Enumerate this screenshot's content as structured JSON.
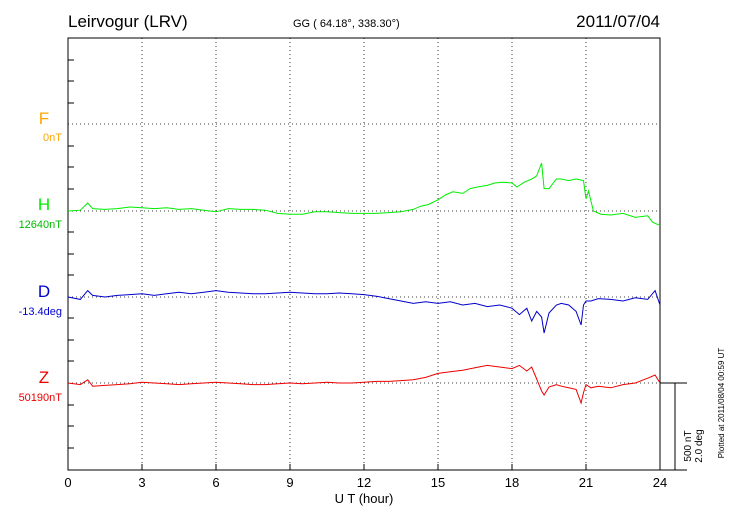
{
  "header": {
    "station": "Leirvogur (LRV)",
    "coords": "GG ( 64.18°, 338.30°)",
    "date": "2011/07/04"
  },
  "plotted_note": "Plotted at 2011/08/04 00:59 UT",
  "scale": {
    "nt": "500 nT",
    "deg": "2.0 deg"
  },
  "chart_data": {
    "type": "line",
    "title": "Leirvogur (LRV)",
    "xlabel": "U T (hour)",
    "ylabel": "",
    "xlim": [
      0,
      24
    ],
    "x_ticks": [
      "0",
      "3",
      "6",
      "9",
      "12",
      "15",
      "18",
      "21",
      "24"
    ],
    "grid": true,
    "series": [
      {
        "name": "F",
        "baseline_label": "0nT",
        "color": "#ffa500",
        "x": [],
        "values": []
      },
      {
        "name": "H",
        "baseline_label": "12640nT",
        "color": "#00ee00",
        "x": [
          0,
          0.5,
          0.8,
          1.0,
          1.5,
          2,
          2.5,
          3,
          3.5,
          4,
          4.5,
          5,
          5.5,
          6,
          6.5,
          7,
          7.5,
          8,
          8.5,
          9,
          9.5,
          10,
          10.5,
          11,
          11.5,
          12,
          12.5,
          13,
          13.5,
          14,
          14.3,
          14.6,
          15,
          15.3,
          15.6,
          16,
          16.3,
          16.6,
          17,
          17.3,
          17.6,
          18,
          18.2,
          18.5,
          18.8,
          19.0,
          19.2,
          19.3,
          19.5,
          19.8,
          20.0,
          20.3,
          20.6,
          20.9,
          21.0,
          21.1,
          21.3,
          21.6,
          22.0,
          22.5,
          23.0,
          23.5,
          23.7,
          24.0
        ],
        "values": [
          0,
          1,
          10,
          3,
          2,
          3,
          5,
          4,
          3,
          4,
          2,
          3,
          1,
          -1,
          3,
          2,
          2,
          1,
          -3,
          -4,
          -4,
          -1,
          -1,
          -2,
          -3,
          -3,
          -3,
          -2,
          -1,
          2,
          6,
          8,
          14,
          20,
          24,
          22,
          28,
          30,
          32,
          35,
          36,
          35,
          30,
          36,
          40,
          44,
          60,
          28,
          28,
          40,
          40,
          38,
          40,
          38,
          15,
          25,
          0,
          -4,
          -5,
          -3,
          -8,
          -6,
          -14,
          -18
        ]
      },
      {
        "name": "D",
        "baseline_label": "-13.4deg",
        "color": "#0000cc",
        "x": [
          0,
          0.5,
          0.8,
          1.0,
          1.5,
          2,
          2.5,
          3,
          3.5,
          4,
          4.5,
          5,
          5.5,
          6,
          6.5,
          7,
          7.5,
          8,
          8.5,
          9,
          9.5,
          10,
          10.5,
          11,
          11.5,
          12,
          12.5,
          13,
          13.5,
          14,
          14.5,
          15,
          15.5,
          16,
          16.5,
          17,
          17.5,
          18,
          18.3,
          18.6,
          18.8,
          19.0,
          19.2,
          19.3,
          19.5,
          19.8,
          20.0,
          20.3,
          20.6,
          20.8,
          20.9,
          21.0,
          21.2,
          21.5,
          22,
          22.5,
          23,
          23.5,
          23.8,
          24.0
        ],
        "values": [
          0,
          -3,
          8,
          2,
          0,
          2,
          3,
          4,
          2,
          4,
          6,
          4,
          6,
          8,
          6,
          5,
          4,
          4,
          5,
          6,
          5,
          4,
          4,
          5,
          4,
          3,
          1,
          -2,
          -5,
          -8,
          -6,
          -8,
          -6,
          -10,
          -8,
          -12,
          -10,
          -14,
          -22,
          -14,
          -30,
          -18,
          -25,
          -45,
          -20,
          -10,
          -8,
          -10,
          -18,
          -35,
          -10,
          -5,
          -5,
          -2,
          -3,
          -5,
          -1,
          -3,
          8,
          -10
        ]
      },
      {
        "name": "Z",
        "baseline_label": "50190nT",
        "color": "#ee0000",
        "x": [
          0,
          0.5,
          0.8,
          1.0,
          1.5,
          2,
          2.5,
          3,
          3.5,
          4,
          4.5,
          5,
          5.5,
          6,
          6.5,
          7,
          7.5,
          8,
          8.5,
          9,
          9.5,
          10,
          10.5,
          11,
          11.5,
          12,
          12.5,
          13,
          13.5,
          14,
          14.5,
          15,
          15.5,
          16,
          16.5,
          17,
          17.5,
          18,
          18.3,
          18.6,
          18.8,
          19.0,
          19.2,
          19.3,
          19.5,
          19.8,
          20.0,
          20.3,
          20.6,
          20.8,
          20.9,
          21.0,
          21.2,
          21.5,
          22,
          22.5,
          23,
          23.5,
          23.8,
          24.0
        ],
        "values": [
          0,
          -2,
          4,
          -4,
          -3,
          -2,
          -1,
          1,
          0,
          -1,
          -2,
          -1,
          0,
          1,
          0,
          -1,
          -2,
          -2,
          -1,
          0,
          -1,
          0,
          1,
          0,
          0,
          1,
          2,
          2,
          3,
          4,
          7,
          12,
          14,
          16,
          19,
          22,
          20,
          18,
          22,
          15,
          20,
          5,
          -10,
          -15,
          -5,
          -2,
          -4,
          -6,
          -8,
          -25,
          -12,
          -2,
          -6,
          -4,
          -6,
          -2,
          0,
          6,
          10,
          0
        ]
      }
    ]
  }
}
